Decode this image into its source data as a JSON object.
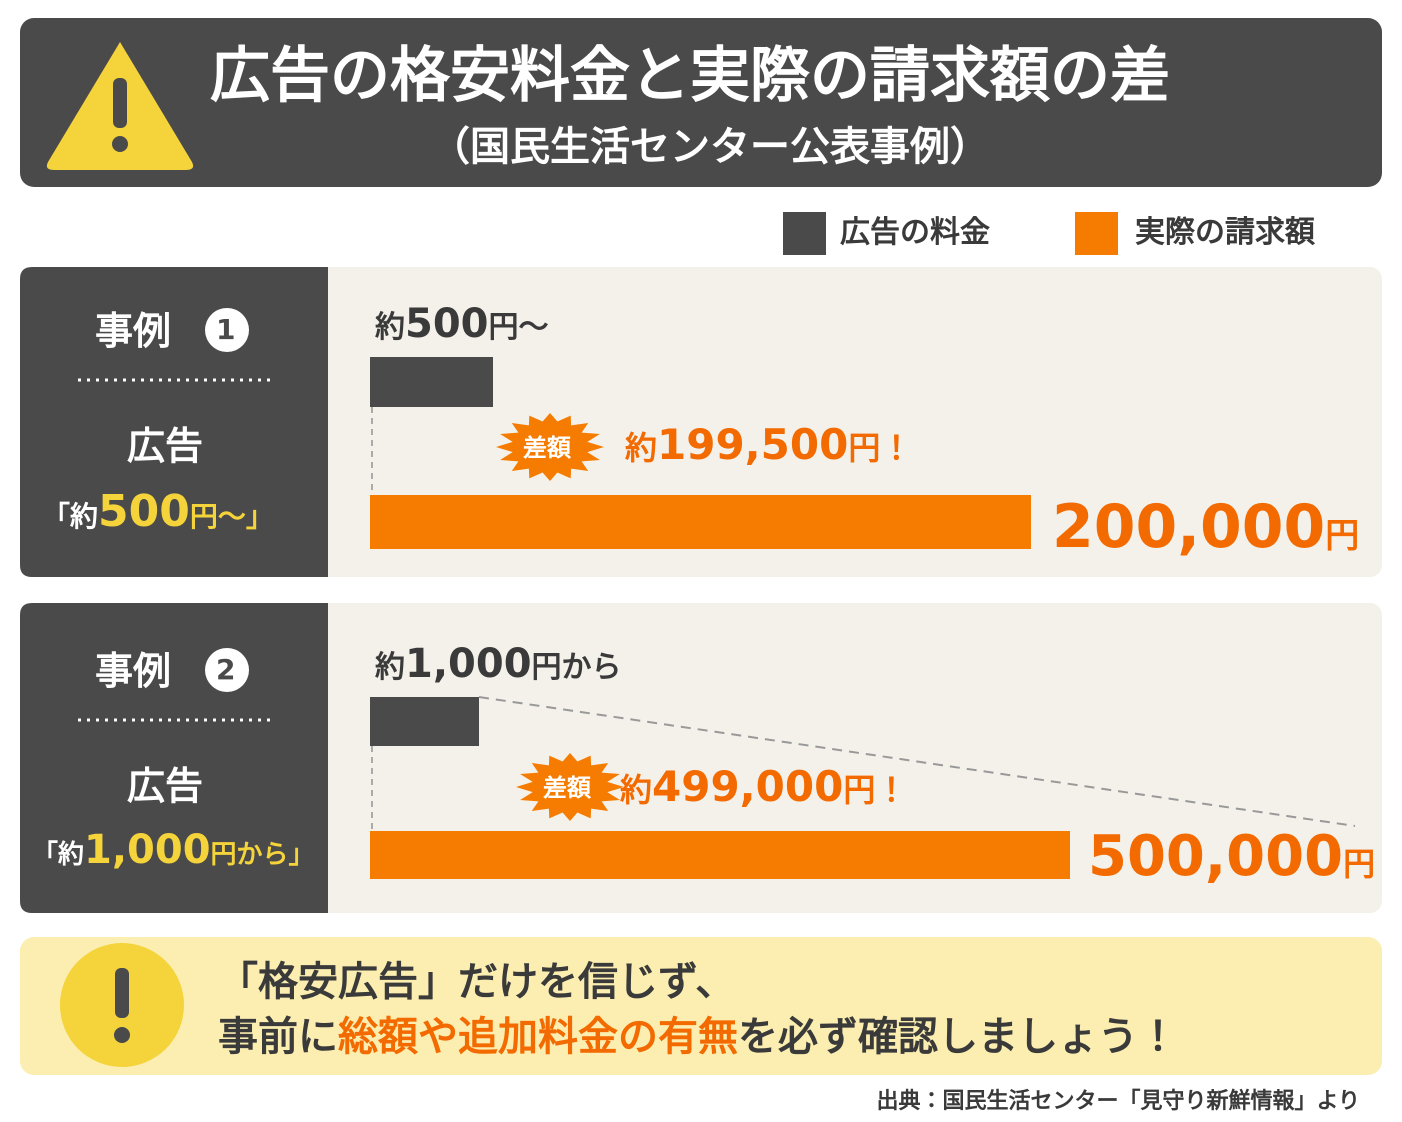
{
  "header": {
    "title": "広告の格安料金と実際の請求額の差",
    "subtitle": "（国民生活センター公表事例）"
  },
  "legend": [
    {
      "label": "広告の料金",
      "color": "#4a4a4a"
    },
    {
      "label": "実際の請求額",
      "color": "#f57c00"
    }
  ],
  "cases": [
    {
      "label": "事例",
      "number": "1",
      "ad_heading": "広告",
      "ad_text": [
        "「約",
        "500",
        "円〜」"
      ],
      "ad_price": [
        "約",
        "500",
        "円〜"
      ],
      "diff_badge": "差額",
      "diff": [
        "約",
        "199,500",
        "円！"
      ],
      "actual": [
        "200,000",
        "円"
      ]
    },
    {
      "label": "事例",
      "number": "2",
      "ad_heading": "広告",
      "ad_text": [
        "「約",
        "1,000",
        "円から」"
      ],
      "ad_price": [
        "約",
        "1,000",
        "円から"
      ],
      "diff_badge": "差額",
      "diff": [
        "約",
        "499,000",
        "円！"
      ],
      "actual": [
        "500,000",
        "円"
      ]
    }
  ],
  "note": {
    "line1": "「格安広告」だけを信じず、",
    "line2": [
      "事前に",
      "総額や追加料金の有無",
      "を必ず確認しましょう！"
    ]
  },
  "source": "出典：国民生活センター「見守り新鮮情報」より"
}
